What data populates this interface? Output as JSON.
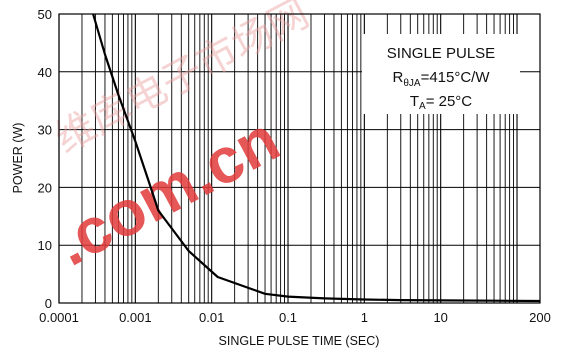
{
  "chart_data": {
    "type": "line",
    "xscale": "log",
    "xlim": [
      0.0001,
      200
    ],
    "ylim": [
      0,
      50
    ],
    "xticks": [
      0.0001,
      0.001,
      0.01,
      0.1,
      1,
      10,
      200
    ],
    "xtick_labels": [
      "0.0001",
      "0.001",
      "0.01",
      "0.1",
      "1",
      "10",
      "200"
    ],
    "yticks": [
      0,
      10,
      20,
      30,
      40,
      50
    ],
    "ytick_labels": [
      "0",
      "10",
      "20",
      "30",
      "40",
      "50"
    ],
    "xlabel": "SINGLE PULSE TIME (SEC)",
    "ylabel": "POWER (W)",
    "grid": true,
    "series": [
      {
        "x": [
          0.00028,
          0.0004,
          0.0006,
          0.001,
          0.0015,
          0.002,
          0.005,
          0.012,
          0.05,
          0.1,
          0.3,
          1,
          3,
          10,
          50,
          200
        ],
        "y": [
          50,
          43,
          36,
          28,
          21,
          16,
          9,
          4.5,
          1.6,
          1.1,
          0.8,
          0.6,
          0.5,
          0.45,
          0.4,
          0.35
        ]
      }
    ],
    "annotation": {
      "line1": "SINGLE PULSE",
      "r_prefix": "R",
      "r_sub": "θJA",
      "r_value": "=415°C/W",
      "t_prefix": "T",
      "t_sub": "A",
      "t_value": "= 25°C"
    }
  },
  "watermark": {
    "text": ".com.cn",
    "cjk": "维库电子市场网"
  },
  "colors": {
    "curve": "#000000",
    "grid": "#000000",
    "watermark": "#e23a3a"
  }
}
